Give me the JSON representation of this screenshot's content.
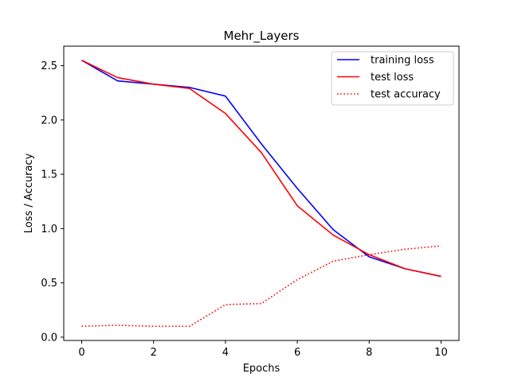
{
  "chart_data": {
    "type": "line",
    "title": "Mehr_Layers",
    "xlabel": "Epochs",
    "ylabel": "Loss / Accuracy",
    "xlim": [
      -0.5,
      10.5
    ],
    "ylim": [
      -0.03,
      2.68
    ],
    "x_ticks": [
      0,
      2,
      4,
      6,
      8,
      10
    ],
    "x_tick_labels": [
      "0",
      "2",
      "4",
      "6",
      "8",
      "10"
    ],
    "y_ticks": [
      0.0,
      0.5,
      1.0,
      1.5,
      2.0,
      2.5
    ],
    "y_tick_labels": [
      "0.0",
      "0.5",
      "1.0",
      "1.5",
      "2.0",
      "2.5"
    ],
    "grid": false,
    "legend_position": "top-right",
    "x": [
      0,
      1,
      2,
      3,
      4,
      5,
      6,
      7,
      8,
      9,
      10
    ],
    "series": [
      {
        "name": "training loss",
        "color": "#0000ff",
        "style": "solid",
        "values": [
          2.55,
          2.36,
          2.33,
          2.3,
          2.22,
          1.78,
          1.37,
          0.99,
          0.74,
          0.63,
          0.56
        ]
      },
      {
        "name": "test loss",
        "color": "#ff0000",
        "style": "solid",
        "values": [
          2.55,
          2.39,
          2.33,
          2.29,
          2.06,
          1.7,
          1.21,
          0.94,
          0.76,
          0.63,
          0.56
        ]
      },
      {
        "name": "test accuracy",
        "color": "#ff0000",
        "style": "dotted",
        "values": [
          0.1,
          0.11,
          0.1,
          0.1,
          0.3,
          0.31,
          0.53,
          0.7,
          0.76,
          0.81,
          0.84
        ]
      }
    ]
  }
}
